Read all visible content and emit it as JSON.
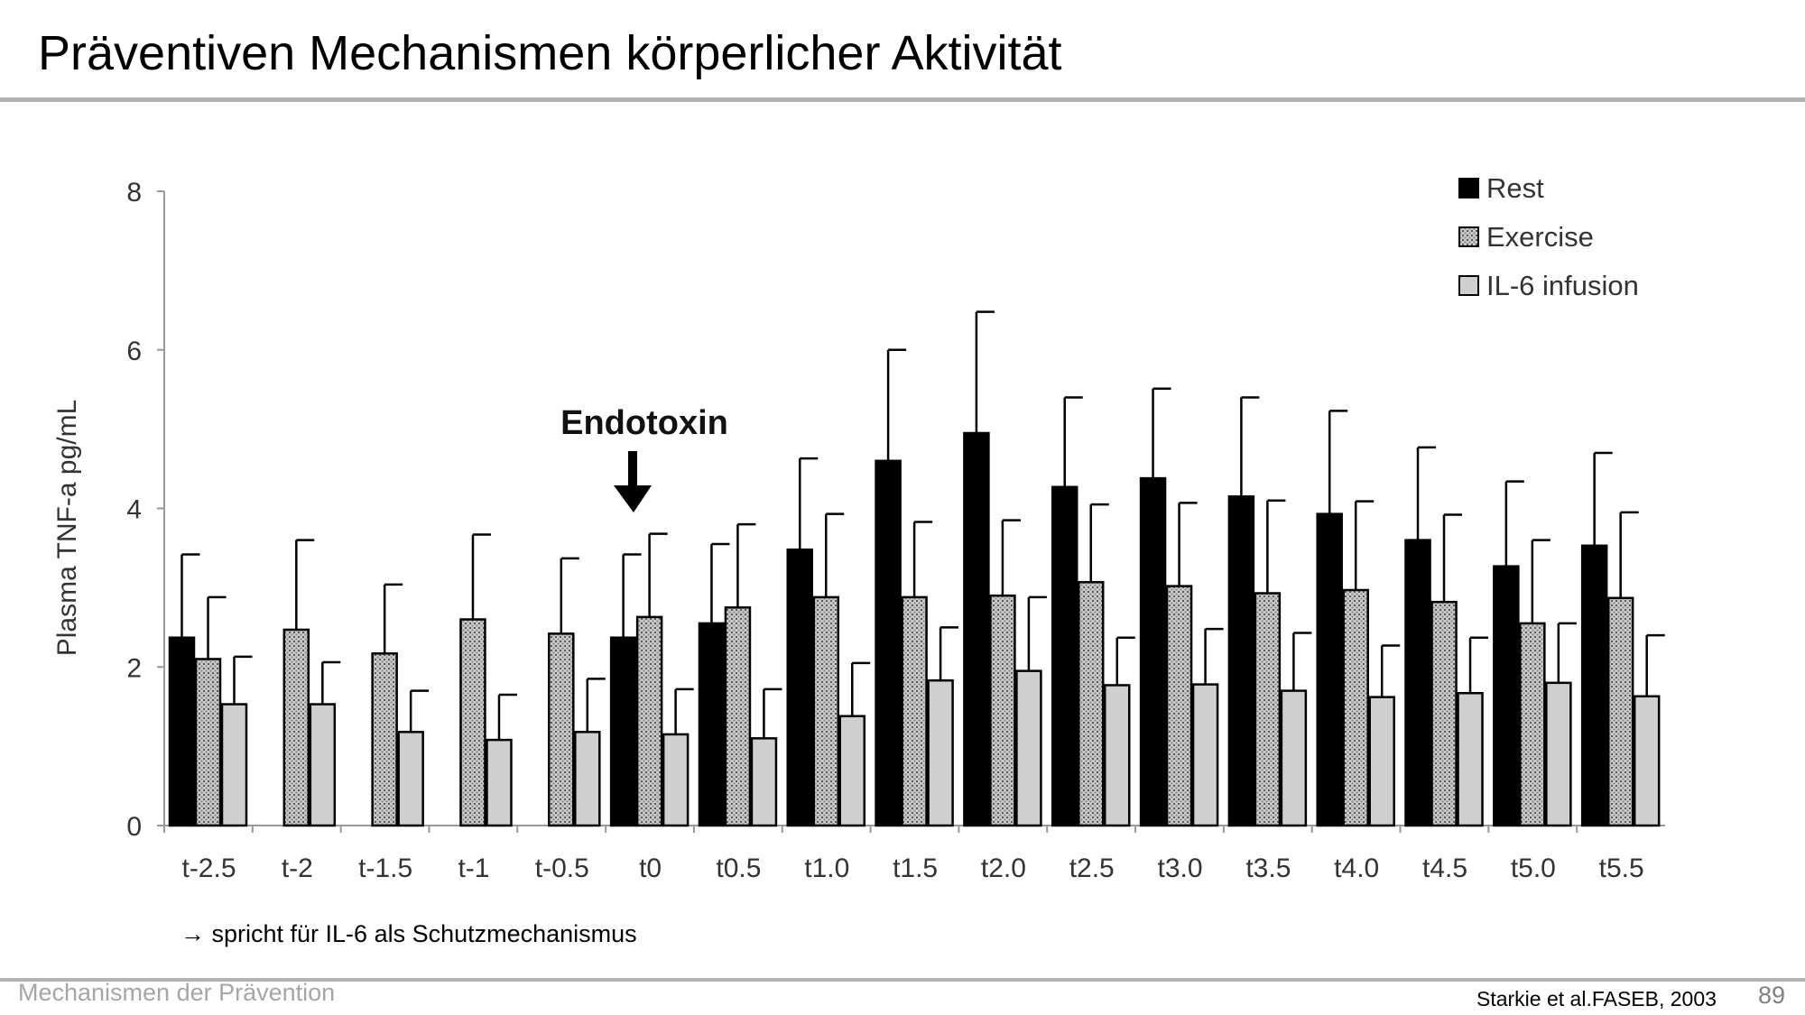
{
  "slide": {
    "title": "Präventiven Mechanismen körperlicher Aktivität",
    "conclusion": "→ spricht für IL-6 als Schutzmechanismus",
    "footer_left": "Mechanismen der Prävention",
    "citation": "Starkie et al.FASEB, 2003",
    "page_number": "89"
  },
  "chart_data": {
    "type": "bar",
    "title": "",
    "xlabel": "",
    "ylabel": "Plasma TNF-a pg/mL",
    "ylim": [
      0,
      8
    ],
    "yticks": [
      0,
      2,
      4,
      6,
      8
    ],
    "grid": false,
    "legend_position": "top-right",
    "annotation": {
      "text": "Endotoxin",
      "category": "t0"
    },
    "categories": [
      "t-2.5",
      "t-2",
      "t-1.5",
      "t-1",
      "t-0.5",
      "t0",
      "t0.5",
      "t1.0",
      "t1.5",
      "t2.0",
      "t2.5",
      "t3.0",
      "t3.5",
      "t4.0",
      "t4.5",
      "t5.0",
      "t5.5"
    ],
    "series": [
      {
        "name": "Rest",
        "color": "#000000",
        "fill": "solid",
        "values": [
          2.37,
          null,
          null,
          null,
          null,
          2.37,
          2.55,
          3.48,
          4.6,
          4.95,
          4.27,
          4.38,
          4.15,
          3.93,
          3.6,
          3.27,
          3.53
        ],
        "errors": [
          1.05,
          null,
          null,
          null,
          null,
          1.05,
          1.0,
          1.15,
          1.4,
          1.53,
          1.13,
          1.13,
          1.25,
          1.3,
          1.17,
          1.07,
          1.17
        ]
      },
      {
        "name": "Exercise",
        "color": "#b4b4b4",
        "fill": "dotted",
        "values": [
          2.1,
          2.47,
          2.17,
          2.6,
          2.42,
          2.63,
          2.75,
          2.88,
          2.88,
          2.9,
          3.07,
          3.02,
          2.93,
          2.97,
          2.82,
          2.55,
          2.87
        ],
        "errors": [
          0.78,
          1.13,
          0.87,
          1.07,
          0.95,
          1.05,
          1.05,
          1.05,
          0.95,
          0.95,
          0.98,
          1.05,
          1.17,
          1.12,
          1.1,
          1.05,
          1.08
        ]
      },
      {
        "name": "IL-6 infusion",
        "color": "#cfcfcf",
        "fill": "solid",
        "values": [
          1.53,
          1.53,
          1.18,
          1.08,
          1.18,
          1.15,
          1.1,
          1.38,
          1.83,
          1.95,
          1.77,
          1.78,
          1.7,
          1.62,
          1.67,
          1.8,
          1.63
        ],
        "errors": [
          0.6,
          0.53,
          0.52,
          0.57,
          0.67,
          0.57,
          0.62,
          0.67,
          0.67,
          0.93,
          0.6,
          0.7,
          0.73,
          0.65,
          0.7,
          0.75,
          0.77
        ]
      }
    ]
  }
}
